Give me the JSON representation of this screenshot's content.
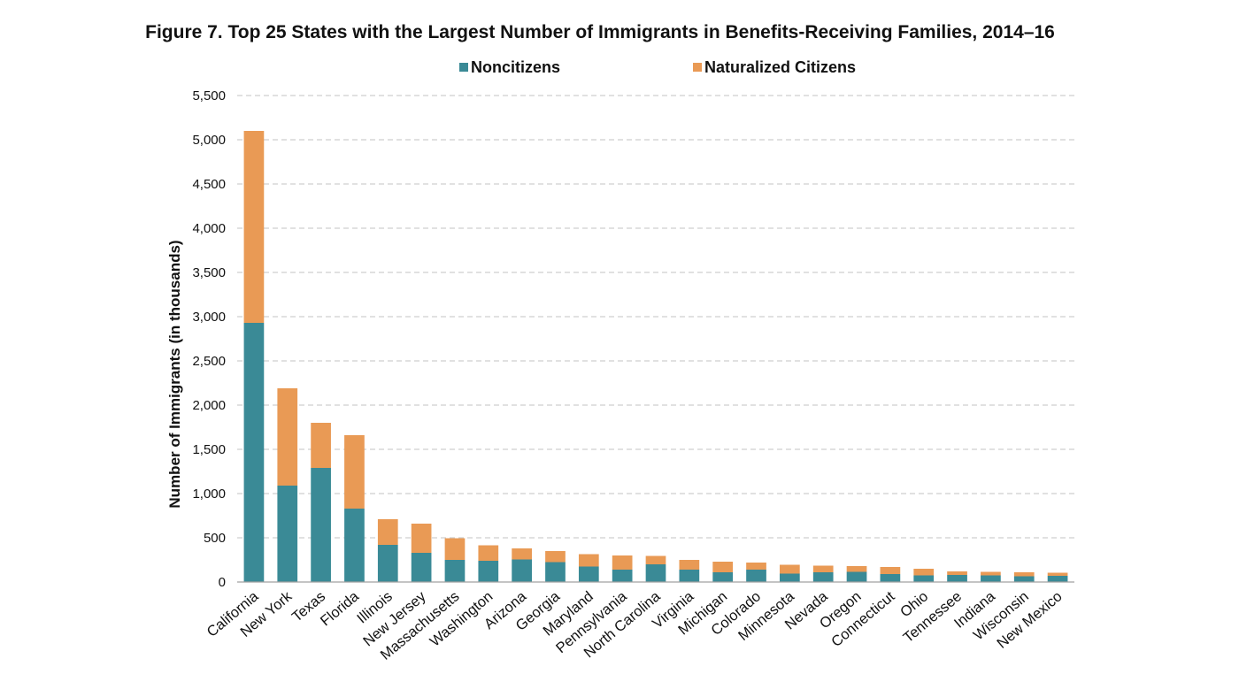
{
  "chart_data": {
    "type": "bar",
    "stacked": true,
    "title": "Figure 7. Top 25 States with the Largest Number of Immigrants in Benefits-Receiving Families, 2014–16",
    "xlabel": "",
    "ylabel": "Number of Immigrants (in thousands)",
    "ylim": [
      0,
      5500
    ],
    "yticks": [
      0,
      500,
      1000,
      1500,
      2000,
      2500,
      3000,
      3500,
      4000,
      4500,
      5000,
      5500
    ],
    "ytick_labels": [
      "0",
      "500",
      "1,000",
      "1,500",
      "2,000",
      "2,500",
      "3,000",
      "3,500",
      "4,000",
      "4,500",
      "5,000",
      "5,500"
    ],
    "grid": true,
    "legend_position": "top",
    "categories": [
      "California",
      "New York",
      "Texas",
      "Florida",
      "Illinois",
      "New Jersey",
      "Massachusetts",
      "Washington",
      "Arizona",
      "Georgia",
      "Maryland",
      "Pennsylvania",
      "North Carolina",
      "Virginia",
      "Michigan",
      "Colorado",
      "Minnesota",
      "Nevada",
      "Oregon",
      "Connecticut",
      "Ohio",
      "Tennessee",
      "Indiana",
      "Wisconsin",
      "New Mexico"
    ],
    "series": [
      {
        "name": "Noncitizens",
        "color": "#3a8a96",
        "values": [
          2930,
          1090,
          1290,
          830,
          420,
          330,
          250,
          240,
          255,
          225,
          175,
          140,
          200,
          140,
          110,
          140,
          95,
          110,
          115,
          90,
          75,
          80,
          75,
          65,
          70
        ]
      },
      {
        "name": "Naturalized Citizens",
        "color": "#e99a55",
        "values": [
          2170,
          1100,
          510,
          830,
          290,
          330,
          245,
          175,
          125,
          125,
          140,
          160,
          95,
          110,
          120,
          80,
          100,
          75,
          65,
          80,
          75,
          40,
          40,
          45,
          35
        ]
      }
    ]
  }
}
